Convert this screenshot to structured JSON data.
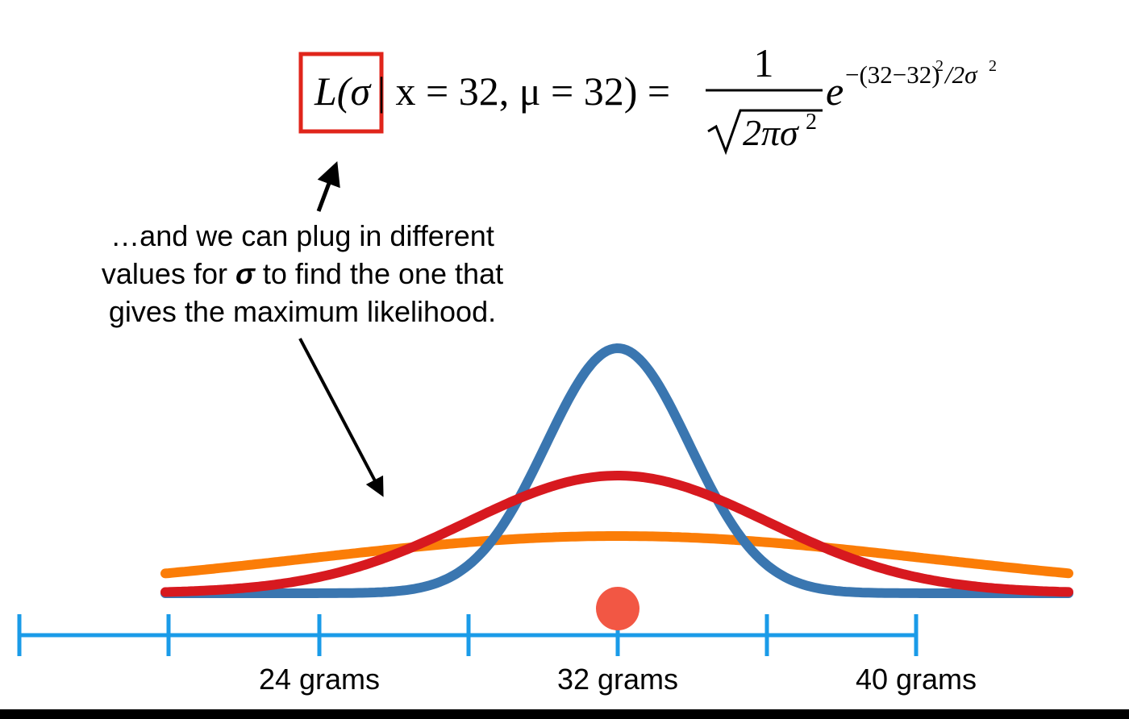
{
  "formula": {
    "lhs": "L(σ",
    "given": "| x = 32, μ = 32) =",
    "numerator": "1",
    "denominator_base": "2πσ",
    "denominator_power": "2",
    "exp_base": "e",
    "exponent": "−(32−32)",
    "exponent_power": "2",
    "exponent_tail": "/2σ",
    "exponent_tail_power": "2"
  },
  "annotation": {
    "line_1": "…and we can plug in different",
    "line_2_start": "values for ",
    "line_2_symbol": "σ",
    "line_2_end": " to find the one that",
    "line_3": "gives the maximum likelihood."
  },
  "axis": {
    "labels": [
      "24 grams",
      "32 grams",
      "40 grams"
    ]
  }
}
